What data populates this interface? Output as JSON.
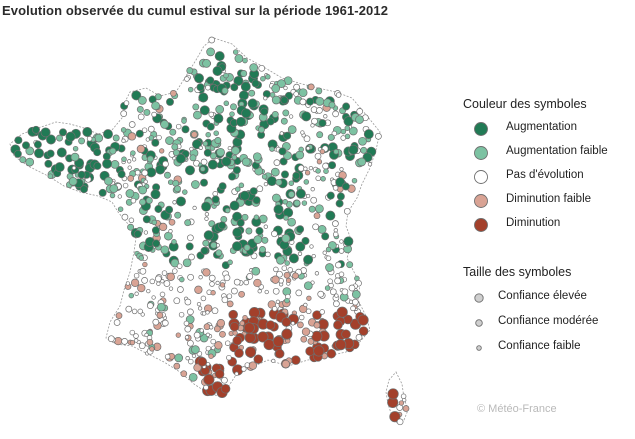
{
  "title": "Evolution observée du cumul estival sur la période 1961-2012",
  "legend": {
    "color_heading": "Couleur des symboles",
    "color_items": [
      {
        "label": "Augmentation",
        "color": "#217a55"
      },
      {
        "label": "Augmentation faible",
        "color": "#7cc2a2"
      },
      {
        "label": "Pas d'évolution",
        "color": "#ffffff"
      },
      {
        "label": "Diminution faible",
        "color": "#d9a394"
      },
      {
        "label": "Diminution",
        "color": "#a3402b"
      }
    ],
    "size_heading": "Taille des symboles",
    "size_items": [
      {
        "label": "Confiance élevée"
      },
      {
        "label": "Confiance modérée"
      },
      {
        "label": "Confiance faible"
      }
    ]
  },
  "credit": "© Météo-France",
  "colors": {
    "augmentation": "#217a55",
    "augmentation_faible": "#7cc2a2",
    "pas_evolution": "#ffffff",
    "diminution_faible": "#d9a394",
    "diminution": "#a3402b",
    "outline": "#6f6f6f",
    "border": "#9a9a9a"
  }
}
